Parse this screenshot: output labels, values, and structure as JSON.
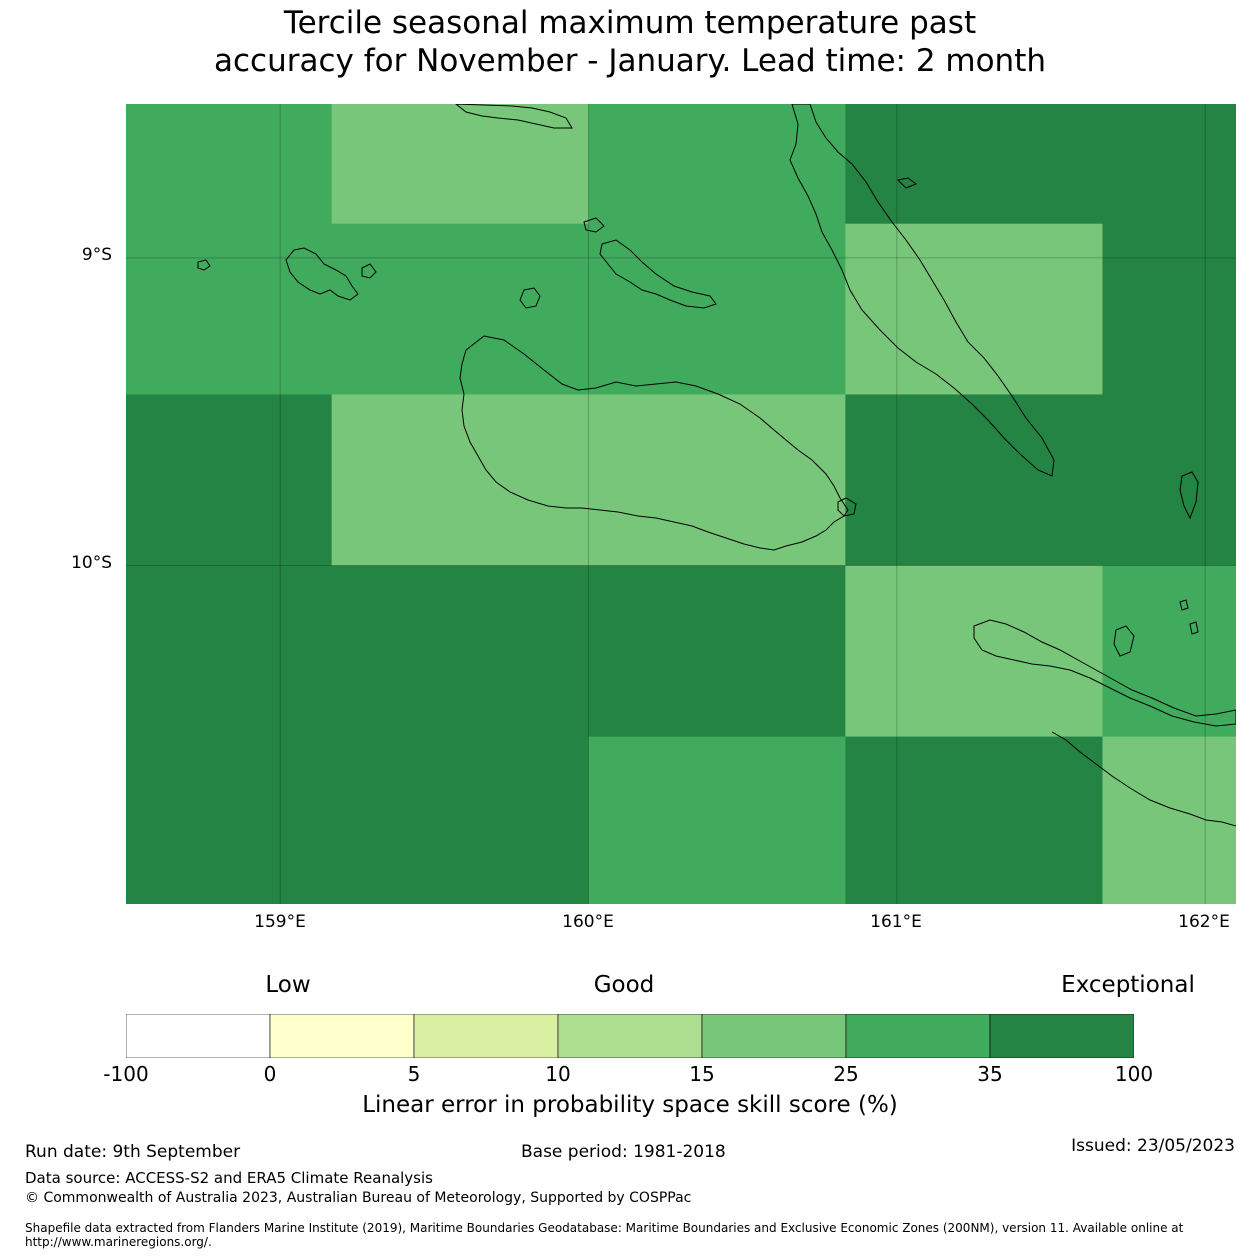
{
  "title": {
    "line1": "Tercile seasonal maximum temperature past",
    "line2": "accuracy for November - January. Lead time: 2 month"
  },
  "map": {
    "lat_labels": [
      "9°S",
      "10°S"
    ],
    "lon_labels": [
      "159°E",
      "160°E",
      "161°E",
      "162°E"
    ],
    "extent": {
      "lon_min": 158.5,
      "lon_max": 162.1,
      "lat_min": -11.1,
      "lat_max": -8.5
    },
    "grid_lon": [
      159,
      160,
      161,
      162
    ],
    "grid_lat": [
      -9,
      -10
    ],
    "cell_class_colors": {
      "25": "#78c679",
      "35": "#41ab5d",
      "100": "#238443"
    },
    "cells": [
      {
        "lon": [
          158.5,
          159.167
        ],
        "lat": [
          -8.5,
          -8.889
        ],
        "class": "35"
      },
      {
        "lon": [
          159.167,
          160.0
        ],
        "lat": [
          -8.5,
          -8.889
        ],
        "class": "25"
      },
      {
        "lon": [
          160.0,
          160.833
        ],
        "lat": [
          -8.5,
          -8.889
        ],
        "class": "35"
      },
      {
        "lon": [
          160.833,
          161.667
        ],
        "lat": [
          -8.5,
          -8.889
        ],
        "class": "100"
      },
      {
        "lon": [
          161.667,
          162.1
        ],
        "lat": [
          -8.5,
          -8.889
        ],
        "class": "100"
      },
      {
        "lon": [
          158.5,
          159.167
        ],
        "lat": [
          -8.889,
          -9.444
        ],
        "class": "35"
      },
      {
        "lon": [
          159.167,
          160.0
        ],
        "lat": [
          -8.889,
          -9.444
        ],
        "class": "35"
      },
      {
        "lon": [
          160.0,
          160.833
        ],
        "lat": [
          -8.889,
          -9.444
        ],
        "class": "35"
      },
      {
        "lon": [
          160.833,
          161.667
        ],
        "lat": [
          -8.889,
          -9.444
        ],
        "class": "25"
      },
      {
        "lon": [
          161.667,
          162.1
        ],
        "lat": [
          -8.889,
          -9.444
        ],
        "class": "100"
      },
      {
        "lon": [
          158.5,
          159.167
        ],
        "lat": [
          -9.444,
          -10.0
        ],
        "class": "100"
      },
      {
        "lon": [
          159.167,
          160.0
        ],
        "lat": [
          -9.444,
          -10.0
        ],
        "class": "25"
      },
      {
        "lon": [
          160.0,
          160.833
        ],
        "lat": [
          -9.444,
          -10.0
        ],
        "class": "25"
      },
      {
        "lon": [
          160.833,
          161.667
        ],
        "lat": [
          -9.444,
          -10.0
        ],
        "class": "100"
      },
      {
        "lon": [
          161.667,
          162.1
        ],
        "lat": [
          -9.444,
          -10.0
        ],
        "class": "100"
      },
      {
        "lon": [
          158.5,
          159.167
        ],
        "lat": [
          -10.0,
          -10.556
        ],
        "class": "100"
      },
      {
        "lon": [
          159.167,
          160.0
        ],
        "lat": [
          -10.0,
          -10.556
        ],
        "class": "100"
      },
      {
        "lon": [
          160.0,
          160.833
        ],
        "lat": [
          -10.0,
          -10.556
        ],
        "class": "100"
      },
      {
        "lon": [
          160.833,
          161.667
        ],
        "lat": [
          -10.0,
          -10.556
        ],
        "class": "25"
      },
      {
        "lon": [
          161.667,
          162.1
        ],
        "lat": [
          -10.0,
          -10.556
        ],
        "class": "35"
      },
      {
        "lon": [
          158.5,
          159.167
        ],
        "lat": [
          -10.556,
          -11.1
        ],
        "class": "100"
      },
      {
        "lon": [
          159.167,
          160.0
        ],
        "lat": [
          -10.556,
          -11.1
        ],
        "class": "100"
      },
      {
        "lon": [
          160.0,
          160.833
        ],
        "lat": [
          -10.556,
          -11.1
        ],
        "class": "35"
      },
      {
        "lon": [
          160.833,
          161.667
        ],
        "lat": [
          -10.556,
          -11.1
        ],
        "class": "100"
      },
      {
        "lon": [
          161.667,
          162.1
        ],
        "lat": [
          -10.556,
          -11.1
        ],
        "class": "25"
      }
    ]
  },
  "legend": {
    "category_labels": {
      "low": "Low",
      "good": "Good",
      "exceptional": "Exceptional"
    },
    "bins": [
      {
        "color": "#ffffff"
      },
      {
        "color": "#ffffcc"
      },
      {
        "color": "#d9f0a3"
      },
      {
        "color": "#addd8e"
      },
      {
        "color": "#78c679"
      },
      {
        "color": "#41ab5d"
      },
      {
        "color": "#238443"
      }
    ],
    "ticks": [
      "-100",
      "0",
      "5",
      "10",
      "15",
      "25",
      "35",
      "100"
    ],
    "label": "Linear error in probability space skill score (%)"
  },
  "footer": {
    "run_date": "Run date: 9th September",
    "base_period": "Base period: 1981-2018",
    "issued": "Issued: 23/05/2023",
    "data_source": "Data source: ACCESS-S2 and ERA5 Climate Reanalysis",
    "copyright": "© Commonwealth of Australia 2023, Australian Bureau of Meteorology, Supported by COSPPac",
    "shapefile": "Shapefile data extracted from Flanders Marine Institute (2019), Maritime Boundaries Geodatabase: Maritime Boundaries and Exclusive Economic Zones (200NM), version 11. Available online at http://www.marineregions.org/."
  }
}
